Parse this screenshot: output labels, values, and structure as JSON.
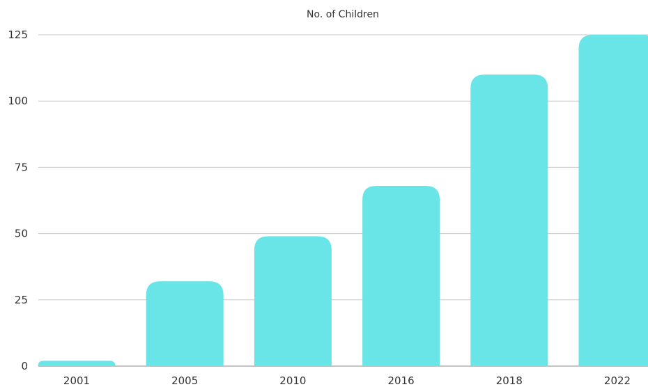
{
  "chart_data": {
    "type": "bar",
    "title": "No. of Children",
    "xlabel": "",
    "ylabel": "",
    "categories": [
      "2001",
      "2005",
      "2010",
      "2016",
      "2018",
      "2022"
    ],
    "values": [
      2,
      32,
      49,
      68,
      110,
      125
    ],
    "ylim": [
      0,
      125
    ],
    "yticks": [
      0,
      25,
      50,
      75,
      100,
      125
    ],
    "grid": true,
    "legend": "none",
    "bar_color": "#69E5E8"
  }
}
